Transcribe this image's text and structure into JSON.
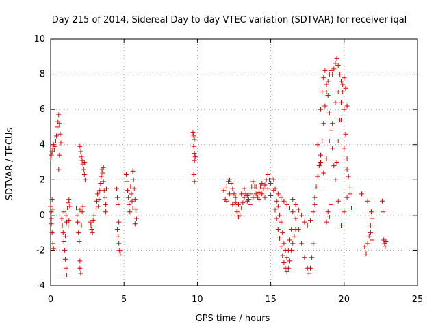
{
  "chart_data": {
    "type": "scatter",
    "title": "Day 215 of 2014, Sidereal Day-to-day VTEC variation (SDTVAR) for receiver iqal",
    "xlabel": "GPS time / hours",
    "ylabel": "SDTVAR / TECUs",
    "xlim": [
      0,
      25
    ],
    "ylim": [
      -4,
      10
    ],
    "xticks": [
      "0",
      "5",
      "10",
      "15",
      "20",
      "25"
    ],
    "yticks": [
      "-4",
      "-2",
      "0",
      "2",
      "4",
      "6",
      "8",
      "10"
    ],
    "grid": true,
    "marker": "+",
    "color": "#e00000",
    "series": [
      {
        "name": "SDTVAR",
        "points": [
          [
            0.0,
            3.2
          ],
          [
            0.05,
            3.4
          ],
          [
            0.1,
            3.6
          ],
          [
            0.15,
            3.8
          ],
          [
            0.2,
            4.0
          ],
          [
            0.25,
            3.7
          ],
          [
            0.3,
            3.9
          ],
          [
            0.35,
            4.2
          ],
          [
            0.4,
            4.5
          ],
          [
            0.45,
            5.0
          ],
          [
            0.5,
            5.3
          ],
          [
            0.55,
            5.7
          ],
          [
            0.6,
            5.2
          ],
          [
            0.65,
            4.6
          ],
          [
            0.7,
            4.1
          ],
          [
            0.6,
            3.4
          ],
          [
            0.55,
            2.6
          ],
          [
            0.0,
            0.5
          ],
          [
            0.05,
            0.2
          ],
          [
            0.05,
            -0.5
          ],
          [
            0.1,
            -1.0
          ],
          [
            0.15,
            -1.6
          ],
          [
            0.2,
            -1.9
          ],
          [
            0.1,
            0.9
          ],
          [
            0.05,
            -0.2
          ],
          [
            0.15,
            0.3
          ],
          [
            0.75,
            -0.2
          ],
          [
            0.8,
            -0.6
          ],
          [
            0.85,
            -1.0
          ],
          [
            0.9,
            -1.5
          ],
          [
            0.95,
            -2.0
          ],
          [
            1.0,
            -2.5
          ],
          [
            1.05,
            -3.0
          ],
          [
            1.1,
            -3.4
          ],
          [
            1.0,
            -1.2
          ],
          [
            0.9,
            0.2
          ],
          [
            1.1,
            -0.4
          ],
          [
            1.05,
            0.0
          ],
          [
            1.15,
            0.4
          ],
          [
            1.2,
            0.7
          ],
          [
            1.25,
            0.9
          ],
          [
            1.3,
            0.5
          ],
          [
            1.25,
            -0.3
          ],
          [
            1.2,
            -0.6
          ],
          [
            1.75,
            0.4
          ],
          [
            1.8,
            0.0
          ],
          [
            1.85,
            -0.4
          ],
          [
            1.9,
            -1.0
          ],
          [
            1.95,
            -1.5
          ],
          [
            2.0,
            -2.6
          ],
          [
            2.0,
            -3.0
          ],
          [
            2.05,
            -3.3
          ],
          [
            2.1,
            -0.6
          ],
          [
            2.15,
            0.2
          ],
          [
            2.2,
            0.5
          ],
          [
            2.0,
            0.3
          ],
          [
            2.0,
            3.9
          ],
          [
            2.05,
            3.6
          ],
          [
            2.1,
            3.3
          ],
          [
            2.15,
            3.1
          ],
          [
            2.2,
            2.9
          ],
          [
            2.25,
            2.6
          ],
          [
            2.3,
            2.3
          ],
          [
            2.35,
            2.0
          ],
          [
            2.3,
            3.0
          ],
          [
            2.7,
            -0.4
          ],
          [
            2.75,
            -0.6
          ],
          [
            2.8,
            -0.8
          ],
          [
            2.85,
            -1.0
          ],
          [
            2.9,
            -0.3
          ],
          [
            2.95,
            0.0
          ],
          [
            3.1,
            0.4
          ],
          [
            3.15,
            0.8
          ],
          [
            3.2,
            1.2
          ],
          [
            3.25,
            0.5
          ],
          [
            3.3,
            0.9
          ],
          [
            3.35,
            1.4
          ],
          [
            3.4,
            1.8
          ],
          [
            3.45,
            2.2
          ],
          [
            3.5,
            2.6
          ],
          [
            3.55,
            2.4
          ],
          [
            3.6,
            1.9
          ],
          [
            3.65,
            1.4
          ],
          [
            3.7,
            1.0
          ],
          [
            3.75,
            0.6
          ],
          [
            3.8,
            1.5
          ],
          [
            3.75,
            0.2
          ],
          [
            3.6,
            2.7
          ],
          [
            4.5,
            1.5
          ],
          [
            4.55,
            1.0
          ],
          [
            4.6,
            0.6
          ],
          [
            4.55,
            -0.8
          ],
          [
            4.6,
            -1.2
          ],
          [
            4.65,
            -1.6
          ],
          [
            4.7,
            -2.0
          ],
          [
            4.75,
            -2.2
          ],
          [
            4.65,
            -0.4
          ],
          [
            5.15,
            2.3
          ],
          [
            5.2,
            1.9
          ],
          [
            5.25,
            1.4
          ],
          [
            5.3,
            1.0
          ],
          [
            5.35,
            0.6
          ],
          [
            5.4,
            0.2
          ],
          [
            5.45,
            1.6
          ],
          [
            5.5,
            1.2
          ],
          [
            5.55,
            0.8
          ],
          [
            5.6,
            0.4
          ],
          [
            5.65,
            2.0
          ],
          [
            5.7,
            1.5
          ],
          [
            5.75,
            0.9
          ],
          [
            5.8,
            0.3
          ],
          [
            5.85,
            -0.2
          ],
          [
            5.75,
            -0.5
          ],
          [
            5.6,
            2.5
          ],
          [
            9.7,
            4.7
          ],
          [
            9.75,
            4.5
          ],
          [
            9.8,
            4.3
          ],
          [
            9.75,
            3.9
          ],
          [
            9.8,
            3.5
          ],
          [
            9.85,
            3.3
          ],
          [
            9.8,
            3.1
          ],
          [
            9.75,
            2.3
          ],
          [
            9.8,
            1.9
          ],
          [
            11.8,
            1.4
          ],
          [
            11.9,
            0.9
          ],
          [
            12.0,
            1.6
          ],
          [
            12.1,
            1.9
          ],
          [
            12.2,
            2.0
          ],
          [
            12.3,
            1.8
          ],
          [
            12.4,
            1.5
          ],
          [
            12.5,
            1.2
          ],
          [
            12.6,
            0.7
          ],
          [
            12.7,
            0.2
          ],
          [
            12.8,
            -0.1
          ],
          [
            12.9,
            0.0
          ],
          [
            13.0,
            0.4
          ],
          [
            13.1,
            0.7
          ],
          [
            13.2,
            1.0
          ],
          [
            13.3,
            1.2
          ],
          [
            13.4,
            1.1
          ],
          [
            13.5,
            0.9
          ],
          [
            13.6,
            1.2
          ],
          [
            13.7,
            1.6
          ],
          [
            13.8,
            1.9
          ],
          [
            13.9,
            1.6
          ],
          [
            14.0,
            1.2
          ],
          [
            14.1,
            1.0
          ],
          [
            14.2,
            1.3
          ],
          [
            14.3,
            1.6
          ],
          [
            14.4,
            1.8
          ],
          [
            14.5,
            1.5
          ],
          [
            14.6,
            1.7
          ],
          [
            14.7,
            2.0
          ],
          [
            14.8,
            2.3
          ],
          [
            14.9,
            2.0
          ],
          [
            15.0,
            1.8
          ],
          [
            15.1,
            2.1
          ],
          [
            15.2,
            2.0
          ],
          [
            15.3,
            1.5
          ],
          [
            12.0,
            0.8
          ],
          [
            12.2,
            1.2
          ],
          [
            12.4,
            0.6
          ],
          [
            12.6,
            1.0
          ],
          [
            12.8,
            0.6
          ],
          [
            13.0,
            1.2
          ],
          [
            13.2,
            1.5
          ],
          [
            13.4,
            0.8
          ],
          [
            13.6,
            0.6
          ],
          [
            13.8,
            1.0
          ],
          [
            14.0,
            1.6
          ],
          [
            14.2,
            0.9
          ],
          [
            14.4,
            1.2
          ],
          [
            14.6,
            1.0
          ],
          [
            14.8,
            1.5
          ],
          [
            15.0,
            1.1
          ],
          [
            15.2,
            1.4
          ],
          [
            15.3,
            0.3
          ],
          [
            15.4,
            -0.2
          ],
          [
            15.5,
            -0.8
          ],
          [
            15.6,
            -1.3
          ],
          [
            15.7,
            -1.8
          ],
          [
            15.8,
            -2.3
          ],
          [
            15.9,
            -2.7
          ],
          [
            16.0,
            -3.0
          ],
          [
            16.1,
            -3.2
          ],
          [
            16.2,
            -3.0
          ],
          [
            16.3,
            -2.6
          ],
          [
            16.4,
            -2.0
          ],
          [
            16.5,
            -1.6
          ],
          [
            16.6,
            -1.2
          ],
          [
            16.7,
            -0.8
          ],
          [
            15.4,
            0.8
          ],
          [
            15.5,
            0.5
          ],
          [
            15.6,
            0.0
          ],
          [
            15.7,
            -0.4
          ],
          [
            15.8,
            -1.0
          ],
          [
            15.9,
            -1.6
          ],
          [
            16.0,
            -2.0
          ],
          [
            16.1,
            -2.4
          ],
          [
            16.2,
            -2.0
          ],
          [
            16.3,
            -1.4
          ],
          [
            16.4,
            -0.8
          ],
          [
            15.5,
            1.2
          ],
          [
            15.7,
            1.0
          ],
          [
            15.9,
            0.8
          ],
          [
            16.1,
            0.6
          ],
          [
            16.3,
            0.4
          ],
          [
            16.5,
            0.2
          ],
          [
            16.7,
            -0.2
          ],
          [
            16.9,
            -0.8
          ],
          [
            17.1,
            -1.6
          ],
          [
            17.3,
            -2.4
          ],
          [
            17.5,
            -3.0
          ],
          [
            17.6,
            -3.3
          ],
          [
            17.7,
            -3.0
          ],
          [
            17.8,
            -2.4
          ],
          [
            17.9,
            -1.6
          ],
          [
            16.5,
            0.9
          ],
          [
            16.7,
            0.6
          ],
          [
            16.9,
            0.3
          ],
          [
            17.1,
            0.0
          ],
          [
            17.3,
            -0.4
          ],
          [
            17.5,
            -0.6
          ],
          [
            17.7,
            -0.3
          ],
          [
            17.9,
            0.2
          ],
          [
            18.0,
            0.6
          ],
          [
            18.0,
            1.0
          ],
          [
            18.1,
            1.6
          ],
          [
            18.2,
            2.2
          ],
          [
            18.3,
            2.8
          ],
          [
            18.4,
            3.4
          ],
          [
            18.5,
            4.2
          ],
          [
            18.6,
            5.2
          ],
          [
            18.7,
            6.2
          ],
          [
            18.8,
            7.0
          ],
          [
            18.9,
            7.6
          ],
          [
            19.0,
            8.0
          ],
          [
            19.1,
            8.2
          ],
          [
            19.2,
            8.0
          ],
          [
            19.3,
            8.3
          ],
          [
            19.4,
            8.6
          ],
          [
            19.5,
            8.9
          ],
          [
            19.6,
            8.5
          ],
          [
            19.7,
            8.0
          ],
          [
            19.8,
            7.6
          ],
          [
            19.9,
            7.0
          ],
          [
            20.0,
            6.0
          ],
          [
            20.1,
            4.6
          ],
          [
            20.2,
            3.2
          ],
          [
            20.3,
            2.2
          ],
          [
            20.4,
            1.2
          ],
          [
            20.5,
            0.4
          ],
          [
            18.4,
            6.0
          ],
          [
            18.5,
            7.0
          ],
          [
            18.6,
            7.8
          ],
          [
            18.7,
            8.2
          ],
          [
            18.8,
            7.4
          ],
          [
            18.9,
            6.8
          ],
          [
            19.0,
            5.8
          ],
          [
            19.1,
            4.8
          ],
          [
            19.2,
            3.8
          ],
          [
            19.3,
            2.8
          ],
          [
            19.4,
            2.0
          ],
          [
            19.5,
            3.0
          ],
          [
            19.6,
            4.2
          ],
          [
            19.7,
            5.4
          ],
          [
            19.8,
            6.4
          ],
          [
            19.9,
            7.4
          ],
          [
            20.0,
            7.8
          ],
          [
            20.1,
            7.2
          ],
          [
            20.2,
            6.2
          ],
          [
            18.2,
            4.0
          ],
          [
            18.4,
            3.0
          ],
          [
            18.6,
            2.4
          ],
          [
            18.8,
            3.2
          ],
          [
            19.0,
            4.2
          ],
          [
            19.2,
            5.2
          ],
          [
            19.4,
            6.4
          ],
          [
            19.6,
            7.0
          ],
          [
            19.8,
            5.4
          ],
          [
            20.0,
            3.8
          ],
          [
            20.2,
            2.6
          ],
          [
            20.4,
            1.6
          ],
          [
            18.8,
            -0.4
          ],
          [
            18.9,
            0.2
          ],
          [
            19.0,
            -0.1
          ],
          [
            19.1,
            0.6
          ],
          [
            19.6,
            0.8
          ],
          [
            19.8,
            -0.6
          ],
          [
            20.0,
            0.2
          ],
          [
            20.2,
            1.0
          ],
          [
            21.2,
            1.2
          ],
          [
            21.6,
            0.8
          ],
          [
            21.4,
            -1.8
          ],
          [
            21.5,
            -2.2
          ],
          [
            21.6,
            -1.6
          ],
          [
            21.7,
            -1.2
          ],
          [
            21.8,
            -0.6
          ],
          [
            21.9,
            -0.2
          ],
          [
            21.85,
            0.2
          ],
          [
            21.8,
            -1.0
          ],
          [
            21.9,
            -1.4
          ],
          [
            22.6,
            0.8
          ],
          [
            22.65,
            0.2
          ],
          [
            22.7,
            -1.4
          ],
          [
            22.75,
            -1.6
          ],
          [
            22.8,
            -1.8
          ],
          [
            22.85,
            -1.5
          ]
        ]
      }
    ]
  }
}
